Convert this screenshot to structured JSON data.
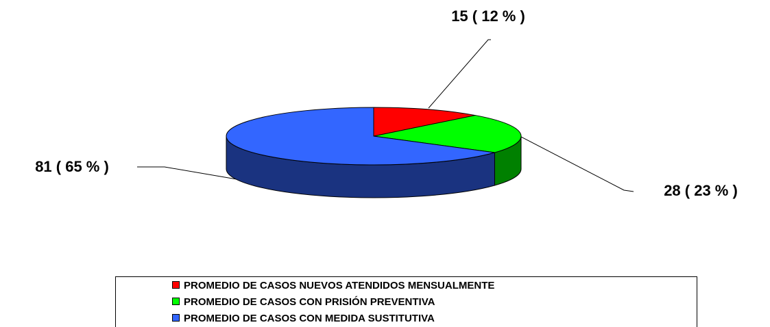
{
  "chart_data": {
    "type": "pie",
    "categories": [
      "PROMEDIO DE CASOS NUEVOS ATENDIDOS MENSUALMENTE",
      "PROMEDIO DE CASOS CON PRISIÓN PREVENTIVA",
      "PROMEDIO DE CASOS CON MEDIDA SUSTITUTIVA"
    ],
    "values": [
      15,
      28,
      81
    ],
    "value_labels": [
      "15 ( 12 % )",
      "28 ( 23 % )",
      "81 ( 65 % )"
    ],
    "colors": [
      "#ff0000",
      "#00ff00",
      "#3366ff"
    ],
    "legend": "bottom"
  }
}
